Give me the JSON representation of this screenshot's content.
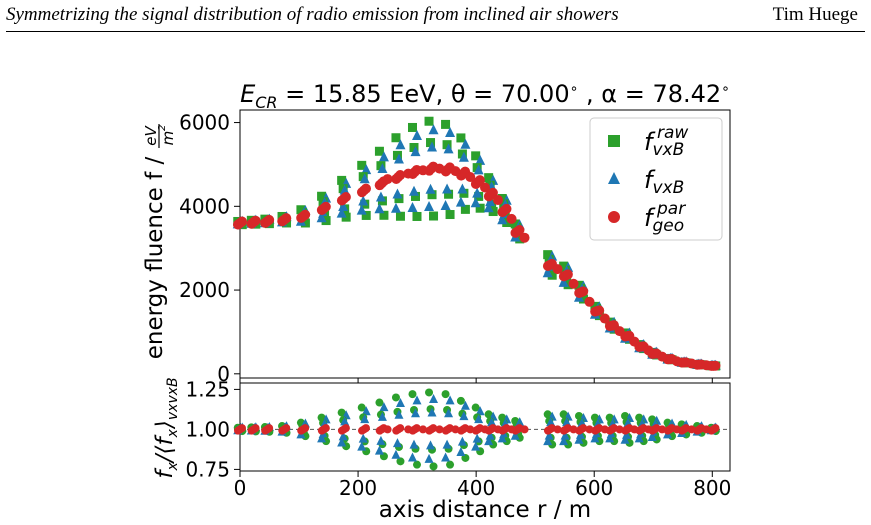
{
  "header": {
    "title": "Symmetrizing the signal distribution of radio emission from inclined air showers",
    "author": "Tim Huege"
  },
  "chart_data": {
    "type": "scatter",
    "title": "E_CR = 15.85 EeV, θ = 70.00 ∘ , α = 78.42 ∘",
    "title_parts": {
      "e": "E",
      "e_sub": "CR",
      "e_val": " = 15.85 EeV, θ = 70.00",
      "deg": "∘",
      "alpha": " , α = 78.42"
    },
    "top_panel": {
      "ylabel": "energy fluence f / ",
      "ylabel_unit": {
        "num": "eV",
        "den": "m",
        "den_sup": "2"
      },
      "ylim": [
        -100,
        6300
      ],
      "yticks": [
        0,
        2000,
        4000,
        6000
      ],
      "yticklabels": [
        "0",
        "2000",
        "4000",
        "6000"
      ]
    },
    "bottom_panel": {
      "ylabel": "f_x/⟨f_x⟩_vxvxB",
      "ylim": [
        0.74,
        1.29
      ],
      "yticks": [
        0.75,
        1.0,
        1.25
      ],
      "yticklabels": [
        "0.75",
        "1.00",
        "1.25"
      ],
      "reference_line": 1.0
    },
    "xlabel": "axis distance r / m",
    "xlim": [
      0,
      830
    ],
    "xticks": [
      0,
      200,
      400,
      600,
      800
    ],
    "xticklabels": [
      "0",
      "200",
      "400",
      "600",
      "800"
    ],
    "legend": {
      "placement": "top-right",
      "entries": [
        {
          "base": "f",
          "sub": "vxB",
          "sup": "raw",
          "marker": "square",
          "color": "#2ca02c"
        },
        {
          "base": "f",
          "sub": "vxB",
          "sup": "",
          "marker": "triangle",
          "color": "#1f77b4"
        },
        {
          "base": "f",
          "sub": "geo",
          "sup": "par",
          "marker": "circle",
          "color": "#d62728"
        }
      ]
    },
    "series_style": {
      "raw": {
        "color": "#2ca02c",
        "marker": "square"
      },
      "vxB": {
        "color": "#1f77b4",
        "marker": "triangle"
      },
      "geo": {
        "color": "#d62728",
        "marker": "circle"
      }
    },
    "radii": [
      0,
      23,
      46,
      75,
      107,
      142,
      176,
      210,
      240,
      268,
      296,
      324,
      352,
      378,
      403,
      425,
      448,
      470,
      525,
      552,
      578,
      605,
      630,
      656,
      680,
      702,
      728,
      752,
      778,
      802
    ],
    "spread": [
      0.01,
      0.012,
      0.014,
      0.02,
      0.04,
      0.07,
      0.1,
      0.13,
      0.16,
      0.19,
      0.21,
      0.22,
      0.21,
      0.17,
      0.13,
      0.09,
      0.07,
      0.05,
      0.09,
      0.09,
      0.08,
      0.07,
      0.07,
      0.08,
      0.07,
      0.06,
      0.04,
      0.03,
      0.02,
      0.01
    ],
    "geo_values": [
      3600,
      3620,
      3640,
      3680,
      3760,
      3950,
      4180,
      4380,
      4550,
      4700,
      4820,
      4900,
      4880,
      4780,
      4580,
      4280,
      3900,
      3400,
      2600,
      2350,
      1950,
      1500,
      1150,
      900,
      650,
      480,
      350,
      270,
      220,
      190
    ],
    "geo_extra": [
      {
        "r": 250,
        "v": 4650
      },
      {
        "r": 285,
        "v": 4780
      },
      {
        "r": 310,
        "v": 4860
      },
      {
        "r": 338,
        "v": 4900
      },
      {
        "r": 365,
        "v": 4840
      },
      {
        "r": 390,
        "v": 4700
      },
      {
        "r": 415,
        "v": 4450
      },
      {
        "r": 437,
        "v": 4150
      },
      {
        "r": 460,
        "v": 3700
      },
      {
        "r": 482,
        "v": 3250
      },
      {
        "r": 538,
        "v": 2500
      },
      {
        "r": 565,
        "v": 2150
      },
      {
        "r": 592,
        "v": 1720
      },
      {
        "r": 618,
        "v": 1320
      },
      {
        "r": 643,
        "v": 1020
      },
      {
        "r": 668,
        "v": 770
      },
      {
        "r": 692,
        "v": 560
      },
      {
        "r": 715,
        "v": 410
      },
      {
        "r": 740,
        "v": 300
      },
      {
        "r": 765,
        "v": 245
      },
      {
        "r": 790,
        "v": 205
      }
    ]
  }
}
